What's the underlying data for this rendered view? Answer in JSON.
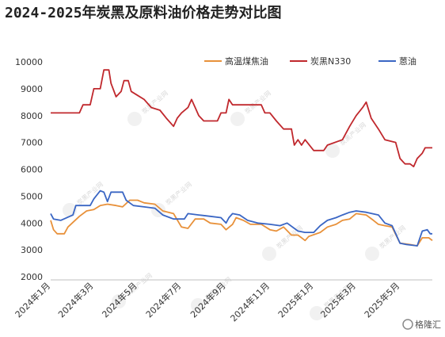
{
  "chart_data": {
    "type": "line",
    "title": "2024-2025年炭黑及原料油价格走势对比图",
    "xlabel": "",
    "ylabel": "",
    "ylim": [
      2000,
      10000
    ],
    "yticks": [
      "10000",
      "9000",
      "8000",
      "7000",
      "6000",
      "5000",
      "4000",
      "3000",
      "2000"
    ],
    "x_ticks": [
      "2024年1月",
      "2024年3月",
      "2024年5月",
      "2024年7月",
      "2024年9月",
      "2024年11月",
      "2025年1月",
      "2025年3月",
      "2025年5月"
    ],
    "x_range": [
      "2024-01-01",
      "2025-06-15"
    ],
    "grid": false,
    "legend": "top-right",
    "series": [
      {
        "name": "高温煤焦油",
        "color": "#e8913a",
        "points": [
          [
            "2024-01-01",
            4100
          ],
          [
            "2024-01-05",
            3750
          ],
          [
            "2024-01-10",
            3600
          ],
          [
            "2024-01-20",
            3600
          ],
          [
            "2024-01-25",
            3850
          ],
          [
            "2024-02-10",
            4250
          ],
          [
            "2024-02-20",
            4450
          ],
          [
            "2024-03-01",
            4500
          ],
          [
            "2024-03-10",
            4650
          ],
          [
            "2024-03-20",
            4700
          ],
          [
            "2024-04-01",
            4650
          ],
          [
            "2024-04-10",
            4600
          ],
          [
            "2024-04-20",
            4850
          ],
          [
            "2024-05-01",
            4850
          ],
          [
            "2024-05-10",
            4750
          ],
          [
            "2024-05-25",
            4700
          ],
          [
            "2024-06-05",
            4450
          ],
          [
            "2024-06-20",
            4350
          ],
          [
            "2024-07-01",
            3850
          ],
          [
            "2024-07-10",
            3800
          ],
          [
            "2024-07-20",
            4150
          ],
          [
            "2024-08-01",
            4150
          ],
          [
            "2024-08-10",
            4000
          ],
          [
            "2024-08-25",
            3950
          ],
          [
            "2024-09-01",
            3750
          ],
          [
            "2024-09-10",
            3950
          ],
          [
            "2024-09-15",
            4200
          ],
          [
            "2024-09-25",
            4100
          ],
          [
            "2024-10-05",
            3950
          ],
          [
            "2024-10-20",
            3950
          ],
          [
            "2024-11-01",
            3750
          ],
          [
            "2024-11-10",
            3700
          ],
          [
            "2024-11-20",
            3850
          ],
          [
            "2024-12-01",
            3550
          ],
          [
            "2024-12-10",
            3550
          ],
          [
            "2024-12-20",
            3350
          ],
          [
            "2024-12-25",
            3500
          ],
          [
            "2025-01-10",
            3650
          ],
          [
            "2025-01-20",
            3850
          ],
          [
            "2025-02-01",
            3950
          ],
          [
            "2025-02-10",
            4100
          ],
          [
            "2025-02-20",
            4150
          ],
          [
            "2025-03-01",
            4350
          ],
          [
            "2025-03-15",
            4300
          ],
          [
            "2025-03-25",
            4100
          ],
          [
            "2025-04-01",
            3950
          ],
          [
            "2025-04-10",
            3900
          ],
          [
            "2025-04-20",
            3850
          ],
          [
            "2025-05-01",
            3250
          ],
          [
            "2025-05-15",
            3200
          ],
          [
            "2025-05-25",
            3150
          ],
          [
            "2025-06-01",
            3450
          ],
          [
            "2025-06-10",
            3450
          ],
          [
            "2025-06-15",
            3350
          ]
        ]
      },
      {
        "name": "炭黑N330",
        "color": "#c0282d",
        "points": [
          [
            "2024-01-01",
            8100
          ],
          [
            "2024-02-10",
            8100
          ],
          [
            "2024-02-15",
            8400
          ],
          [
            "2024-02-25",
            8400
          ],
          [
            "2024-03-01",
            9000
          ],
          [
            "2024-03-10",
            9000
          ],
          [
            "2024-03-15",
            9700
          ],
          [
            "2024-03-22",
            9700
          ],
          [
            "2024-03-25",
            9200
          ],
          [
            "2024-04-01",
            8700
          ],
          [
            "2024-04-08",
            8900
          ],
          [
            "2024-04-12",
            9300
          ],
          [
            "2024-04-18",
            9300
          ],
          [
            "2024-04-22",
            8900
          ],
          [
            "2024-05-01",
            8750
          ],
          [
            "2024-05-10",
            8600
          ],
          [
            "2024-05-20",
            8300
          ],
          [
            "2024-06-01",
            8200
          ],
          [
            "2024-06-10",
            7900
          ],
          [
            "2024-06-20",
            7600
          ],
          [
            "2024-06-25",
            7900
          ],
          [
            "2024-07-01",
            8100
          ],
          [
            "2024-07-10",
            8300
          ],
          [
            "2024-07-15",
            8600
          ],
          [
            "2024-07-20",
            8300
          ],
          [
            "2024-07-25",
            8000
          ],
          [
            "2024-08-01",
            7800
          ],
          [
            "2024-08-20",
            7800
          ],
          [
            "2024-08-25",
            8100
          ],
          [
            "2024-09-01",
            8100
          ],
          [
            "2024-09-05",
            8600
          ],
          [
            "2024-09-10",
            8400
          ],
          [
            "2024-10-20",
            8400
          ],
          [
            "2024-10-25",
            8100
          ],
          [
            "2024-11-01",
            8100
          ],
          [
            "2024-11-10",
            7800
          ],
          [
            "2024-11-20",
            7500
          ],
          [
            "2024-12-01",
            7500
          ],
          [
            "2024-12-05",
            6900
          ],
          [
            "2024-12-10",
            7100
          ],
          [
            "2024-12-15",
            6900
          ],
          [
            "2024-12-20",
            7100
          ],
          [
            "2025-01-01",
            6700
          ],
          [
            "2025-01-15",
            6700
          ],
          [
            "2025-01-20",
            6900
          ],
          [
            "2025-02-10",
            7100
          ],
          [
            "2025-02-20",
            7600
          ],
          [
            "2025-03-01",
            8000
          ],
          [
            "2025-03-10",
            8300
          ],
          [
            "2025-03-15",
            8500
          ],
          [
            "2025-03-22",
            7900
          ],
          [
            "2025-04-01",
            7500
          ],
          [
            "2025-04-10",
            7100
          ],
          [
            "2025-04-25",
            7000
          ],
          [
            "2025-05-01",
            6400
          ],
          [
            "2025-05-08",
            6200
          ],
          [
            "2025-05-15",
            6200
          ],
          [
            "2025-05-20",
            6100
          ],
          [
            "2025-05-25",
            6400
          ],
          [
            "2025-06-01",
            6600
          ],
          [
            "2025-06-05",
            6800
          ],
          [
            "2025-06-15",
            6800
          ]
        ]
      },
      {
        "name": "蒽油",
        "color": "#3a66c4",
        "points": [
          [
            "2024-01-01",
            4350
          ],
          [
            "2024-01-05",
            4150
          ],
          [
            "2024-01-15",
            4100
          ],
          [
            "2024-02-01",
            4300
          ],
          [
            "2024-02-05",
            4650
          ],
          [
            "2024-02-25",
            4650
          ],
          [
            "2024-03-01",
            4900
          ],
          [
            "2024-03-10",
            5200
          ],
          [
            "2024-03-15",
            5150
          ],
          [
            "2024-03-20",
            4800
          ],
          [
            "2024-03-25",
            5150
          ],
          [
            "2024-04-10",
            5150
          ],
          [
            "2024-04-15",
            4850
          ],
          [
            "2024-04-25",
            4650
          ],
          [
            "2024-05-10",
            4600
          ],
          [
            "2024-05-25",
            4550
          ],
          [
            "2024-06-05",
            4300
          ],
          [
            "2024-06-15",
            4200
          ],
          [
            "2024-06-20",
            4150
          ],
          [
            "2024-07-05",
            4150
          ],
          [
            "2024-07-10",
            4350
          ],
          [
            "2024-07-25",
            4300
          ],
          [
            "2024-08-10",
            4250
          ],
          [
            "2024-08-25",
            4200
          ],
          [
            "2024-09-01",
            4000
          ],
          [
            "2024-09-05",
            4200
          ],
          [
            "2024-09-10",
            4350
          ],
          [
            "2024-09-20",
            4300
          ],
          [
            "2024-10-01",
            4100
          ],
          [
            "2024-10-15",
            4000
          ],
          [
            "2024-11-01",
            3950
          ],
          [
            "2024-11-15",
            3900
          ],
          [
            "2024-11-25",
            4000
          ],
          [
            "2024-12-05",
            3800
          ],
          [
            "2024-12-10",
            3700
          ],
          [
            "2024-12-20",
            3650
          ],
          [
            "2025-01-01",
            3650
          ],
          [
            "2025-01-10",
            3900
          ],
          [
            "2025-01-20",
            4100
          ],
          [
            "2025-02-01",
            4200
          ],
          [
            "2025-02-10",
            4300
          ],
          [
            "2025-02-20",
            4400
          ],
          [
            "2025-03-01",
            4450
          ],
          [
            "2025-03-15",
            4400
          ],
          [
            "2025-04-01",
            4300
          ],
          [
            "2025-04-10",
            4000
          ],
          [
            "2025-04-20",
            3900
          ],
          [
            "2025-05-01",
            3250
          ],
          [
            "2025-05-10",
            3200
          ],
          [
            "2025-05-25",
            3150
          ],
          [
            "2025-06-01",
            3700
          ],
          [
            "2025-06-08",
            3750
          ],
          [
            "2025-06-12",
            3600
          ],
          [
            "2025-06-15",
            3600
          ]
        ]
      }
    ]
  },
  "watermark": {
    "icon": "logo-icon",
    "text": "炭黑产业网"
  },
  "brand": {
    "icon": "gelonghui-logo-icon",
    "text": "格隆汇"
  }
}
